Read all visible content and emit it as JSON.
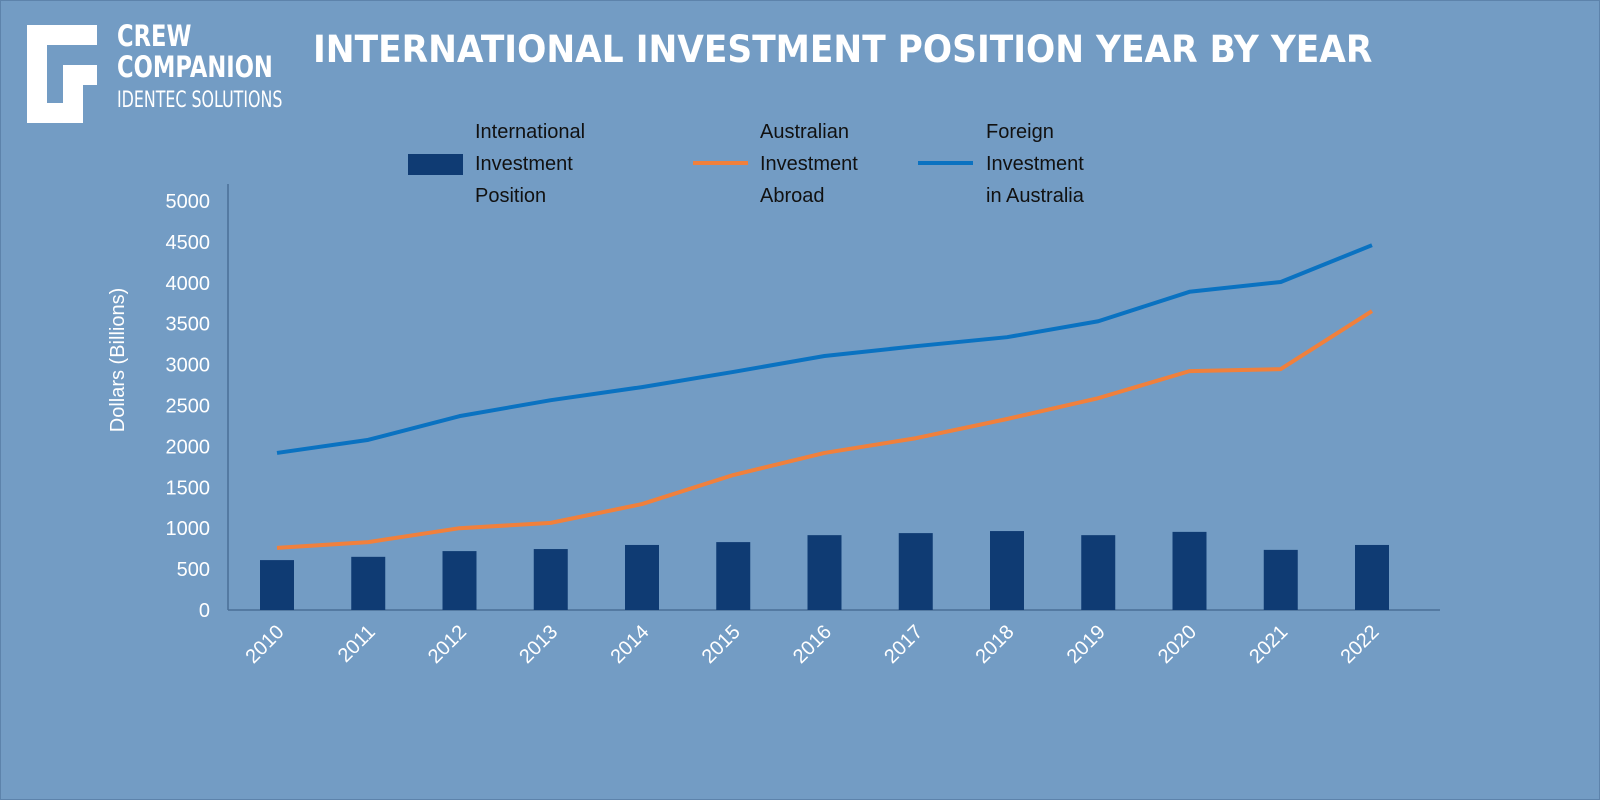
{
  "logo": {
    "line1": "CREW",
    "line2": "COMPANION",
    "line3": "IDENTEC SOLUTIONS"
  },
  "chart_data": {
    "type": "bar+line",
    "title": "INTERNATIONAL INVESTMENT POSITION YEAR BY YEAR",
    "xlabel": "",
    "ylabel": "Dollars (Billions)",
    "ylim": [
      0,
      5000
    ],
    "yticks": [
      0,
      500,
      1000,
      1500,
      2000,
      2500,
      3000,
      3500,
      4000,
      4500,
      5000
    ],
    "grid": false,
    "legend_position": "top",
    "categories": [
      "2010",
      "2011",
      "2012",
      "2013",
      "2014",
      "2015",
      "2016",
      "2017",
      "2018",
      "2019",
      "2020",
      "2021",
      "2022"
    ],
    "series": [
      {
        "name": "International Investment Position",
        "type": "bar",
        "color": "#0f3b73",
        "legend_lines": [
          "International",
          "Investment",
          "Position"
        ],
        "values": [
          610,
          650,
          720,
          745,
          795,
          830,
          915,
          940,
          965,
          915,
          955,
          735,
          795
        ]
      },
      {
        "name": "Australian Investment Abroad",
        "type": "line",
        "color": "#f0803c",
        "legend_lines": [
          "Australian",
          "Investment",
          "Abroad"
        ],
        "values": [
          760,
          830,
          1000,
          1065,
          1295,
          1650,
          1920,
          2100,
          2335,
          2590,
          2920,
          2945,
          3655
        ]
      },
      {
        "name": "Foreign Investment in Australia",
        "type": "line",
        "color": "#0a72c1",
        "legend_lines": [
          "Foreign",
          "Investment",
          "in Australia"
        ],
        "values": [
          1920,
          2080,
          2370,
          2565,
          2725,
          2910,
          3105,
          3225,
          3335,
          3530,
          3890,
          4010,
          4460
        ]
      }
    ]
  }
}
